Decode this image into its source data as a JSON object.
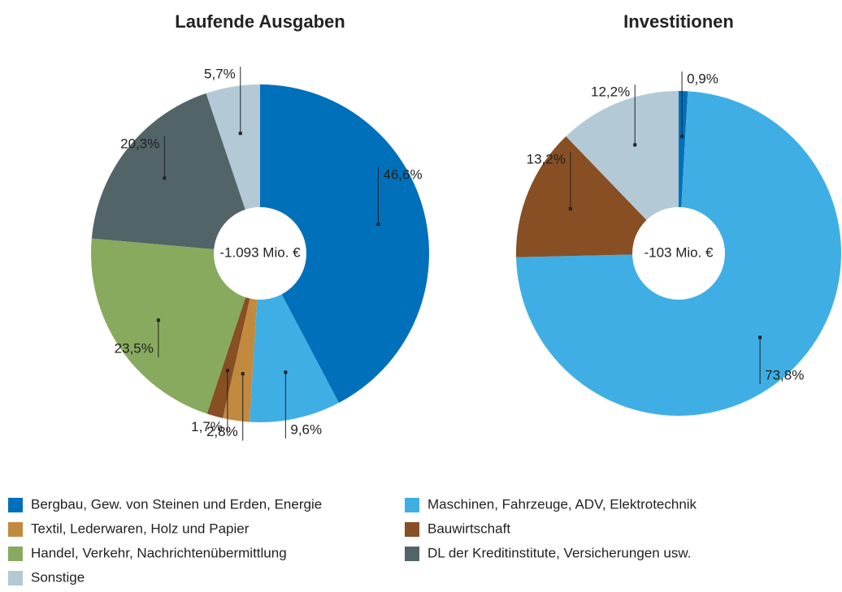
{
  "chart_data": [
    {
      "type": "pie",
      "title": "Laufende Ausgaben",
      "center_label": "-1.093 Mio. €",
      "categories": [
        "Bergbau, Gew. von Steinen und Erden, Energie",
        "Maschinen, Fahrzeuge, ADV, Elektrotechnik",
        "Textil, Lederwaren, Holz und Papier",
        "Bauwirtschaft",
        "Handel, Verkehr, Nachrichtenübermittlung",
        "DL der Kreditinstitute, Versicherungen usw.",
        "Sonstige"
      ],
      "values": [
        46.6,
        9.6,
        2.8,
        1.7,
        23.5,
        20.3,
        5.7
      ],
      "value_labels": [
        "46,6%",
        "9,6%",
        "2,8%",
        "1,7%",
        "23,5%",
        "20,3%",
        "5,7%"
      ],
      "colors": [
        "#0070ba",
        "#3faee5",
        "#c28a3e",
        "#874f23",
        "#88aa5e",
        "#526468",
        "#b3c9d6"
      ]
    },
    {
      "type": "pie",
      "title": "Investitionen",
      "center_label": "-103 Mio. €",
      "categories": [
        "Bergbau, Gew. von Steinen und Erden, Energie",
        "Maschinen, Fahrzeuge, ADV, Elektrotechnik",
        "Bauwirtschaft",
        "Sonstige"
      ],
      "values": [
        0.9,
        73.8,
        13.2,
        12.2
      ],
      "value_labels": [
        "0,9%",
        "73,8%",
        "13,2%",
        "12,2%"
      ],
      "colors": [
        "#0070ba",
        "#3faee5",
        "#874f23",
        "#b3c9d6"
      ]
    }
  ],
  "legend": [
    {
      "name": "Bergbau, Gew. von Steinen und Erden, Energie",
      "color": "#0070ba"
    },
    {
      "name": "Maschinen, Fahrzeuge, ADV, Elektrotechnik",
      "color": "#3faee5"
    },
    {
      "name": "Textil, Lederwaren, Holz und Papier",
      "color": "#c28a3e"
    },
    {
      "name": "Bauwirtschaft",
      "color": "#874f23"
    },
    {
      "name": "Handel, Verkehr, Nachrichtenübermittlung",
      "color": "#88aa5e"
    },
    {
      "name": "DL der Kreditinstitute, Versicherungen usw.",
      "color": "#526468"
    },
    {
      "name": "Sonstige",
      "color": "#b3c9d6"
    }
  ]
}
